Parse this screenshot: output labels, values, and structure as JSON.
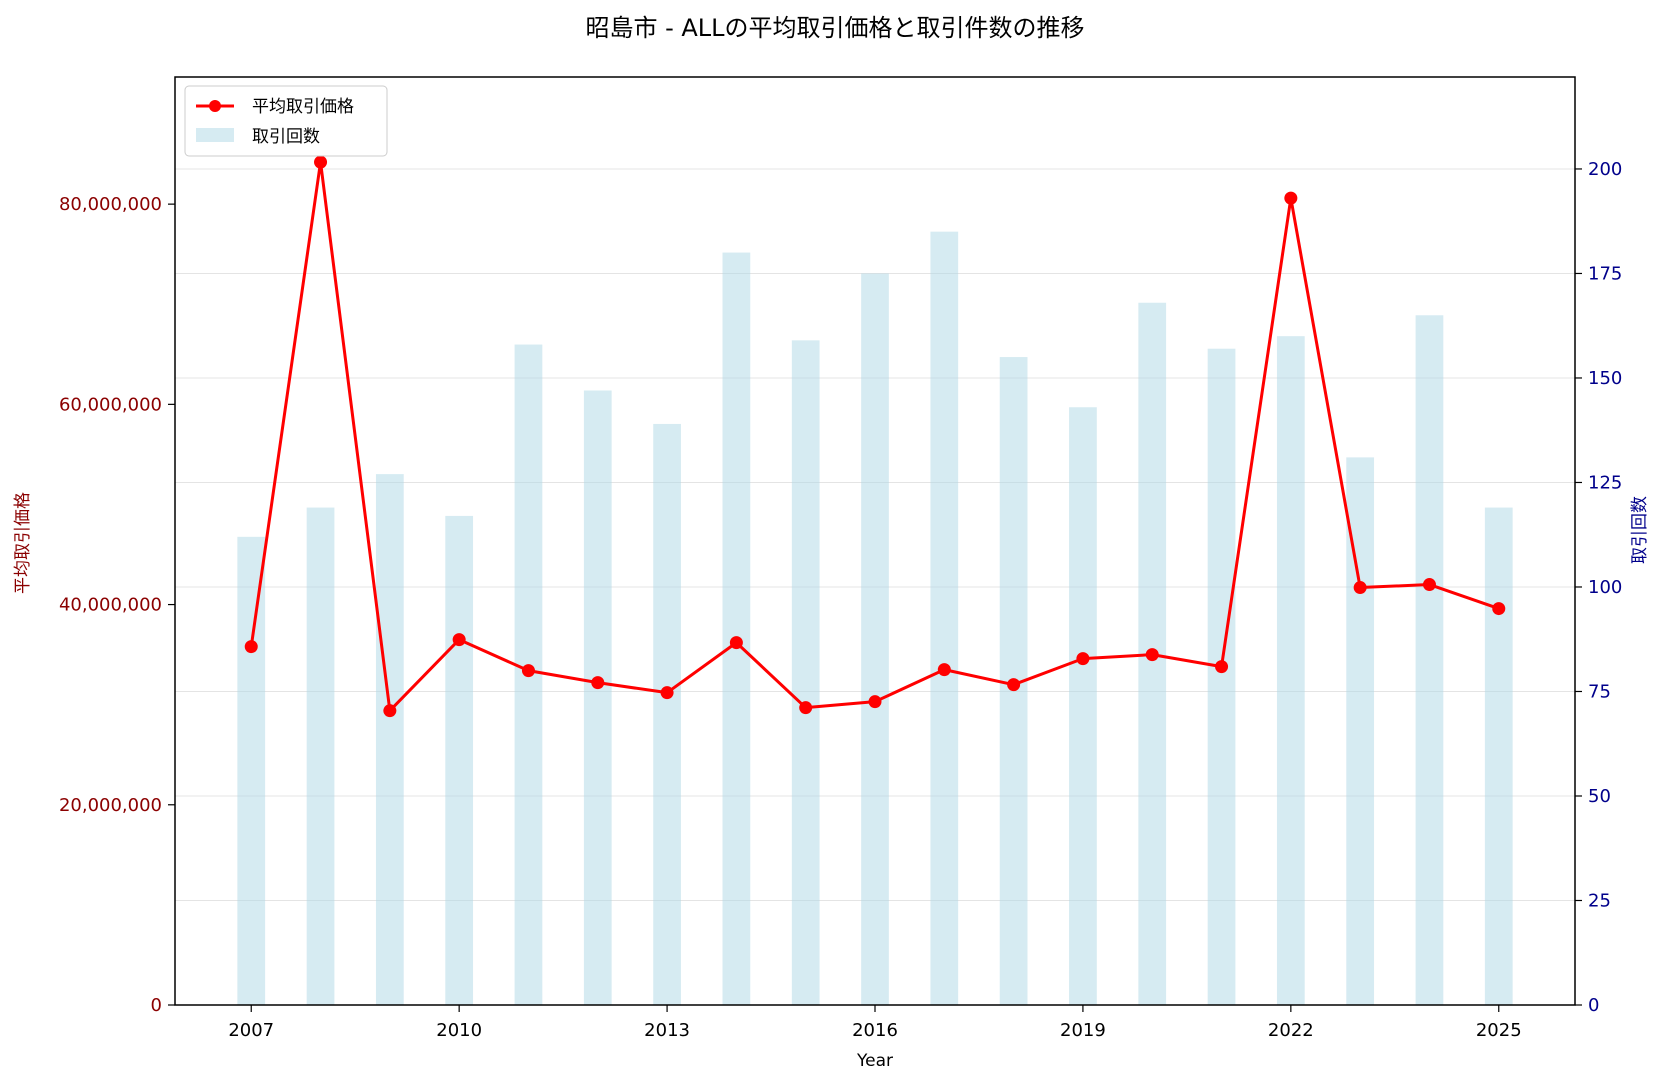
{
  "chart_data": {
    "type": "bar+line",
    "title": "昭島市 - ALLの平均取引価格と取引件数の推移",
    "xlabel": "Year",
    "ylabel_left": "平均取引価格",
    "ylabel_right": "取引回数",
    "x": [
      2007,
      2008,
      2009,
      2010,
      2011,
      2012,
      2013,
      2014,
      2015,
      2016,
      2017,
      2018,
      2019,
      2020,
      2021,
      2022,
      2023,
      2024,
      2025
    ],
    "x_ticks": [
      "2007",
      "2010",
      "2013",
      "2016",
      "2019",
      "2022",
      "2025"
    ],
    "xlim": [
      2005.9,
      2026.1
    ],
    "ylim_left": [
      0,
      92700000
    ],
    "ylim_right": [
      0,
      222
    ],
    "yticks_left": [
      "0",
      "20,000,000",
      "40,000,000",
      "60,000,000",
      "80,000,000"
    ],
    "yticks_left_values": [
      0,
      20000000,
      40000000,
      60000000,
      80000000
    ],
    "yticks_right": [
      "0",
      "25",
      "50",
      "75",
      "100",
      "125",
      "150",
      "175",
      "200"
    ],
    "yticks_right_values": [
      0,
      25,
      50,
      75,
      100,
      125,
      150,
      175,
      200
    ],
    "grid": true,
    "legend_position": "top-left",
    "series": [
      {
        "name": "平均取引価格",
        "type": "line",
        "axis": "left",
        "color": "#ff0000",
        "values": [
          35800000,
          84200000,
          29400000,
          36500000,
          33400000,
          32200000,
          31200000,
          36200000,
          29700000,
          30300000,
          33500000,
          32000000,
          34600000,
          35000000,
          33800000,
          80600000,
          41700000,
          42000000,
          39600000
        ]
      },
      {
        "name": "取引回数",
        "type": "bar",
        "axis": "right",
        "color": "#add8e6",
        "values": [
          112,
          119,
          127,
          117,
          158,
          147,
          139,
          180,
          159,
          175,
          185,
          155,
          143,
          168,
          157,
          160,
          131,
          165,
          119
        ]
      }
    ]
  }
}
